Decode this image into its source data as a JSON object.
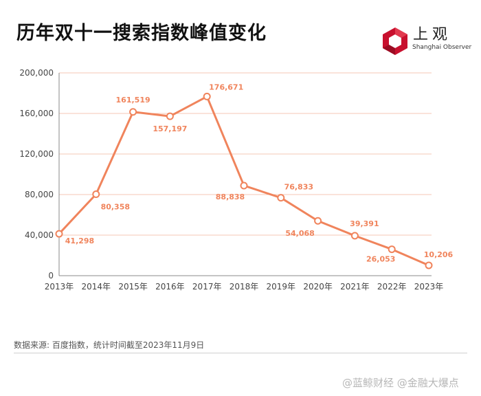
{
  "header": {
    "title": "历年双十一搜索指数峰值变化"
  },
  "logo": {
    "name": "上观",
    "subtitle": "Shanghai Observer",
    "accent": "#c8102e"
  },
  "chart_data": {
    "type": "line",
    "title": "历年双十一搜索指数峰值变化",
    "xlabel": "",
    "ylabel": "",
    "categories": [
      "2013年",
      "2014年",
      "2015年",
      "2016年",
      "2017年",
      "2018年",
      "2019年",
      "2020年",
      "2021年",
      "2022年",
      "2023年"
    ],
    "values": [
      41298,
      80358,
      161519,
      157197,
      176671,
      88838,
      76833,
      54068,
      39391,
      26053,
      10206
    ],
    "labels": [
      "41,298",
      "80,358",
      "161,519",
      "157,197",
      "176,671",
      "88,838",
      "76,833",
      "54,068",
      "39,391",
      "26,053",
      "10,206"
    ],
    "ylim": [
      0,
      200000
    ],
    "yticks": [
      "0",
      "40,000",
      "80,000",
      "120,000",
      "160,000",
      "200,000"
    ],
    "ytick_values": [
      0,
      40000,
      80000,
      120000,
      160000,
      200000
    ],
    "grid": true,
    "line_color": "#f0845c",
    "grid_color": "#f6c7b4"
  },
  "footer": {
    "source": "数据来源: 百度指数，统计时间截至2023年11月9日"
  },
  "watermark": {
    "text": "@蓝鲸财经 @金融大爆点"
  }
}
